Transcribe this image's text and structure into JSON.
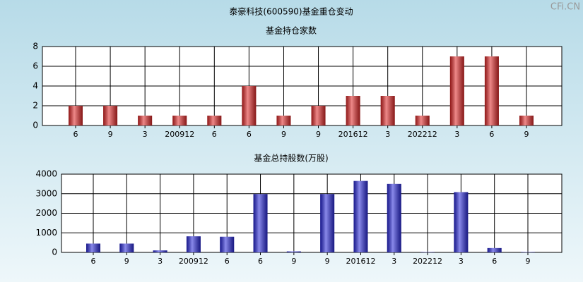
{
  "title": "泰豪科技(600590)基金重仓变动",
  "watermark": "CFi.CN",
  "chart_data": [
    {
      "type": "bar",
      "title": "基金持仓家数",
      "categories": [
        "6",
        "9",
        "3",
        "200912",
        "6",
        "6",
        "9",
        "9",
        "201612",
        "3",
        "202212",
        "3",
        "6",
        "9"
      ],
      "values": [
        2,
        2,
        1,
        1,
        1,
        4,
        1,
        2,
        3,
        3,
        1,
        7,
        7,
        1
      ],
      "color": "#e02828",
      "ylim": [
        0,
        8
      ],
      "yticks": [
        0,
        2,
        4,
        6,
        8
      ],
      "grid": true
    },
    {
      "type": "bar",
      "title": "基金总持股数(万股)",
      "categories": [
        "6",
        "9",
        "3",
        "200912",
        "6",
        "6",
        "9",
        "9",
        "201612",
        "3",
        "202212",
        "3",
        "6",
        "9"
      ],
      "values": [
        450,
        450,
        100,
        820,
        800,
        2980,
        50,
        2980,
        3650,
        3500,
        20,
        3080,
        220,
        20
      ],
      "color": "#2828d8",
      "ylim": [
        0,
        4000
      ],
      "yticks": [
        0,
        1000,
        2000,
        3000,
        4000
      ],
      "grid": true
    }
  ]
}
